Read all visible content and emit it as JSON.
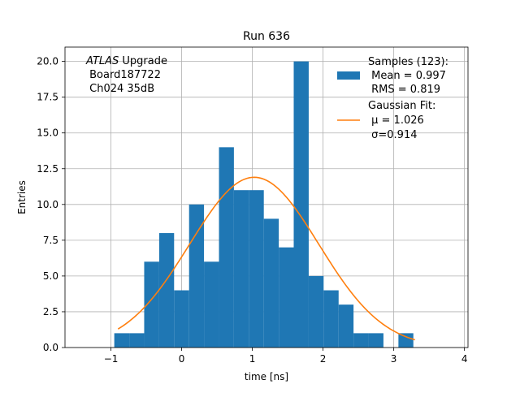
{
  "chart_data": {
    "type": "bar",
    "title": "Run 636",
    "xlabel": "time [ns]",
    "ylabel": "Entries",
    "xlim": [
      -1.65,
      4.05
    ],
    "ylim": [
      0,
      21.0
    ],
    "grid": true,
    "x_ticks": [
      -1,
      0,
      1,
      2,
      3,
      4
    ],
    "x_tick_labels": [
      "−1",
      "0",
      "1",
      "2",
      "3",
      "4"
    ],
    "y_ticks": [
      0.0,
      2.5,
      5.0,
      7.5,
      10.0,
      12.5,
      15.0,
      17.5,
      20.0
    ],
    "y_tick_labels": [
      "0.0",
      "2.5",
      "5.0",
      "7.5",
      "10.0",
      "12.5",
      "15.0",
      "17.5",
      "20.0"
    ],
    "histogram": {
      "name": "Samples (123):",
      "color": "#1f77b4",
      "bin_edges": [
        -0.953,
        -0.741,
        -0.53,
        -0.318,
        -0.107,
        0.105,
        0.316,
        0.528,
        0.739,
        0.951,
        1.162,
        1.374,
        1.585,
        1.797,
        2.008,
        2.22,
        2.431,
        2.643,
        2.854,
        3.066,
        3.277
      ],
      "counts": [
        1,
        1,
        6,
        8,
        4,
        10,
        6,
        14,
        11,
        11,
        9,
        7,
        20,
        5,
        4,
        3,
        1,
        1,
        0,
        1
      ]
    },
    "gaussian_fit": {
      "name": "Gaussian Fit:",
      "color": "#ff7f0e",
      "mu": 1.026,
      "sigma": 0.914,
      "amplitude": 11.9,
      "x_range": [
        -0.9,
        3.3
      ]
    },
    "legend": {
      "position": "top-right",
      "samples_title": "Samples (123):",
      "samples_mean": " Mean = 0.997",
      "samples_rms": " RMS = 0.819",
      "fit_title": "Gaussian Fit:",
      "fit_mu": " μ = 1.026",
      "fit_sigma": " σ=0.914"
    },
    "annotation": {
      "atlas": "ATLAS",
      "upgrade": " Upgrade",
      "board": " Board187722",
      "channel": " Ch024 35dB"
    }
  }
}
